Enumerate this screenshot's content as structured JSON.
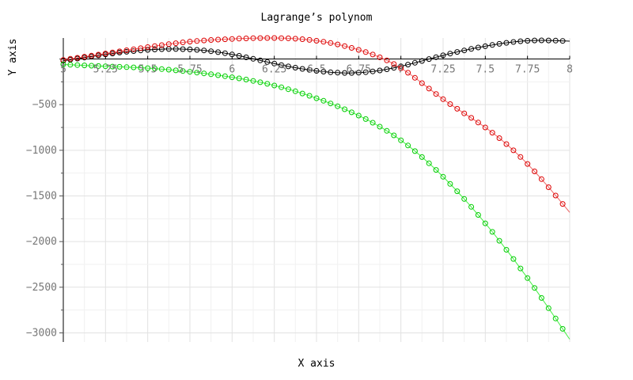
{
  "chart_data": {
    "type": "line",
    "title": "Lagrange’s polynom",
    "xlabel": "X axis",
    "ylabel": "Y axis",
    "xlim": [
      5,
      8
    ],
    "ylim": [
      -3100,
      230
    ],
    "grid": true,
    "x_ticks": [
      5,
      5.25,
      5.5,
      5.75,
      6,
      6.25,
      6.5,
      6.75,
      7,
      7.25,
      7.5,
      7.75,
      8
    ],
    "x_tick_labels": [
      "5",
      "5.25",
      "5.5",
      "5.75",
      "6",
      "6.25",
      "6.5",
      "6.75",
      "7",
      "7.25",
      "7.5",
      "7.75",
      "8"
    ],
    "y_ticks": [
      -3000,
      -2500,
      -2000,
      -1500,
      -1000,
      -500
    ],
    "y_tick_labels": [
      "−3000",
      "−2500",
      "−2000",
      "−1500",
      "−1000",
      "−500"
    ],
    "marker": "circle",
    "series": [
      {
        "color": "#000000",
        "line_color": "#000000",
        "x": [
          5,
          5.25,
          5.5,
          5.75,
          6,
          6.25,
          6.5,
          6.75,
          7,
          7.25,
          7.5,
          7.75,
          8
        ],
        "values": [
          -20,
          50,
          100,
          105,
          50,
          -50,
          -130,
          -150,
          -80,
          40,
          140,
          200,
          195
        ]
      },
      {
        "color": "#dd0000",
        "line_color": "#ee6666",
        "x": [
          5,
          5.25,
          5.5,
          5.75,
          6,
          6.25,
          6.5,
          6.75,
          7,
          7.25,
          7.5,
          7.75,
          8
        ],
        "values": [
          -10,
          60,
          130,
          190,
          220,
          230,
          200,
          100,
          -100,
          -440,
          -750,
          -1150,
          -1680
        ]
      },
      {
        "color": "#00cc00",
        "line_color": "#44ee44",
        "x": [
          5,
          5.25,
          5.5,
          5.75,
          6,
          6.25,
          6.5,
          6.75,
          7,
          7.25,
          7.5,
          7.75,
          8
        ],
        "values": [
          -60,
          -80,
          -100,
          -140,
          -200,
          -290,
          -430,
          -620,
          -890,
          -1290,
          -1800,
          -2400,
          -3070
        ]
      }
    ]
  }
}
